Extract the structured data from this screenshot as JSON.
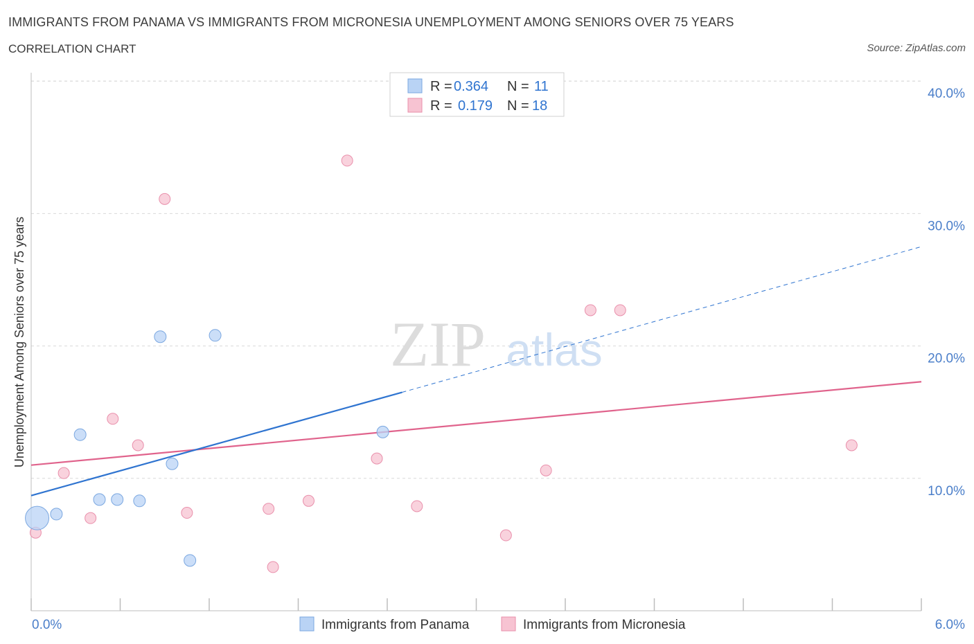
{
  "title": "IMMIGRANTS FROM PANAMA VS IMMIGRANTS FROM MICRONESIA UNEMPLOYMENT AMONG SENIORS OVER 75 YEARS",
  "subtitle": "CORRELATION CHART",
  "source": "Source: ZipAtlas.com",
  "watermark": {
    "zip": "ZIP",
    "atlas": "atlas"
  },
  "legend": {
    "panama": {
      "r_label": "R =",
      "r_value": "0.364",
      "n_label": "N =",
      "n_value": "11"
    },
    "micronesia": {
      "r_label": "R =",
      "r_value": "0.179",
      "n_label": "N =",
      "n_value": "18"
    }
  },
  "bottom_legend": {
    "panama": "Immigrants from Panama",
    "micronesia": "Immigrants from Micronesia"
  },
  "colors": {
    "panama_fill": "#b9d3f5",
    "panama_stroke": "#7aa7e0",
    "panama_line": "#2f74d0",
    "micronesia_fill": "#f7c3d2",
    "micronesia_stroke": "#e98fab",
    "micronesia_line": "#e0638c",
    "grid": "#d9d9d9",
    "tick_label": "#4a7ec9"
  },
  "chart_data": {
    "type": "scatter",
    "title": "IMMIGRANTS FROM PANAMA VS IMMIGRANTS FROM MICRONESIA UNEMPLOYMENT AMONG SENIORS OVER 75 YEARS",
    "xlabel": "",
    "ylabel": "Unemployment Among Seniors over 75 years",
    "xlim": [
      0,
      6
    ],
    "ylim": [
      0,
      40
    ],
    "x_tick_labels": [
      "0.0%",
      "6.0%"
    ],
    "y_ticks": [
      10,
      20,
      30,
      40
    ],
    "y_tick_labels": [
      "10.0%",
      "20.0%",
      "30.0%",
      "40.0%"
    ],
    "grid": true,
    "legend_position": "top-center",
    "series": [
      {
        "name": "Immigrants from Panama",
        "points": [
          {
            "x": 0.04,
            "y": 7.0,
            "size": "large"
          },
          {
            "x": 0.17,
            "y": 7.3
          },
          {
            "x": 0.33,
            "y": 13.3
          },
          {
            "x": 0.46,
            "y": 8.4
          },
          {
            "x": 0.58,
            "y": 8.4
          },
          {
            "x": 0.73,
            "y": 8.3
          },
          {
            "x": 0.87,
            "y": 20.7
          },
          {
            "x": 0.95,
            "y": 11.1
          },
          {
            "x": 1.07,
            "y": 3.8
          },
          {
            "x": 1.24,
            "y": 20.8
          },
          {
            "x": 2.37,
            "y": 13.5
          }
        ],
        "trend": {
          "x0": 0.0,
          "y0": 8.7,
          "x1": 2.5,
          "y1": 16.5,
          "x_ext": 6.0,
          "y_ext": 27.5
        }
      },
      {
        "name": "Immigrants from Micronesia",
        "points": [
          {
            "x": 0.03,
            "y": 5.9
          },
          {
            "x": 0.22,
            "y": 10.4
          },
          {
            "x": 0.4,
            "y": 7.0
          },
          {
            "x": 0.55,
            "y": 14.5
          },
          {
            "x": 0.72,
            "y": 12.5
          },
          {
            "x": 0.9,
            "y": 31.1
          },
          {
            "x": 1.05,
            "y": 7.4
          },
          {
            "x": 1.6,
            "y": 7.7
          },
          {
            "x": 1.63,
            "y": 3.3
          },
          {
            "x": 1.87,
            "y": 8.3
          },
          {
            "x": 2.13,
            "y": 34.0
          },
          {
            "x": 2.33,
            "y": 11.5
          },
          {
            "x": 2.6,
            "y": 7.9
          },
          {
            "x": 3.2,
            "y": 5.7
          },
          {
            "x": 3.47,
            "y": 10.6
          },
          {
            "x": 3.77,
            "y": 22.7
          },
          {
            "x": 3.97,
            "y": 22.7
          },
          {
            "x": 5.53,
            "y": 12.5
          }
        ],
        "trend": {
          "x0": 0.0,
          "y0": 11.0,
          "x1": 6.0,
          "y1": 17.3
        }
      }
    ]
  }
}
